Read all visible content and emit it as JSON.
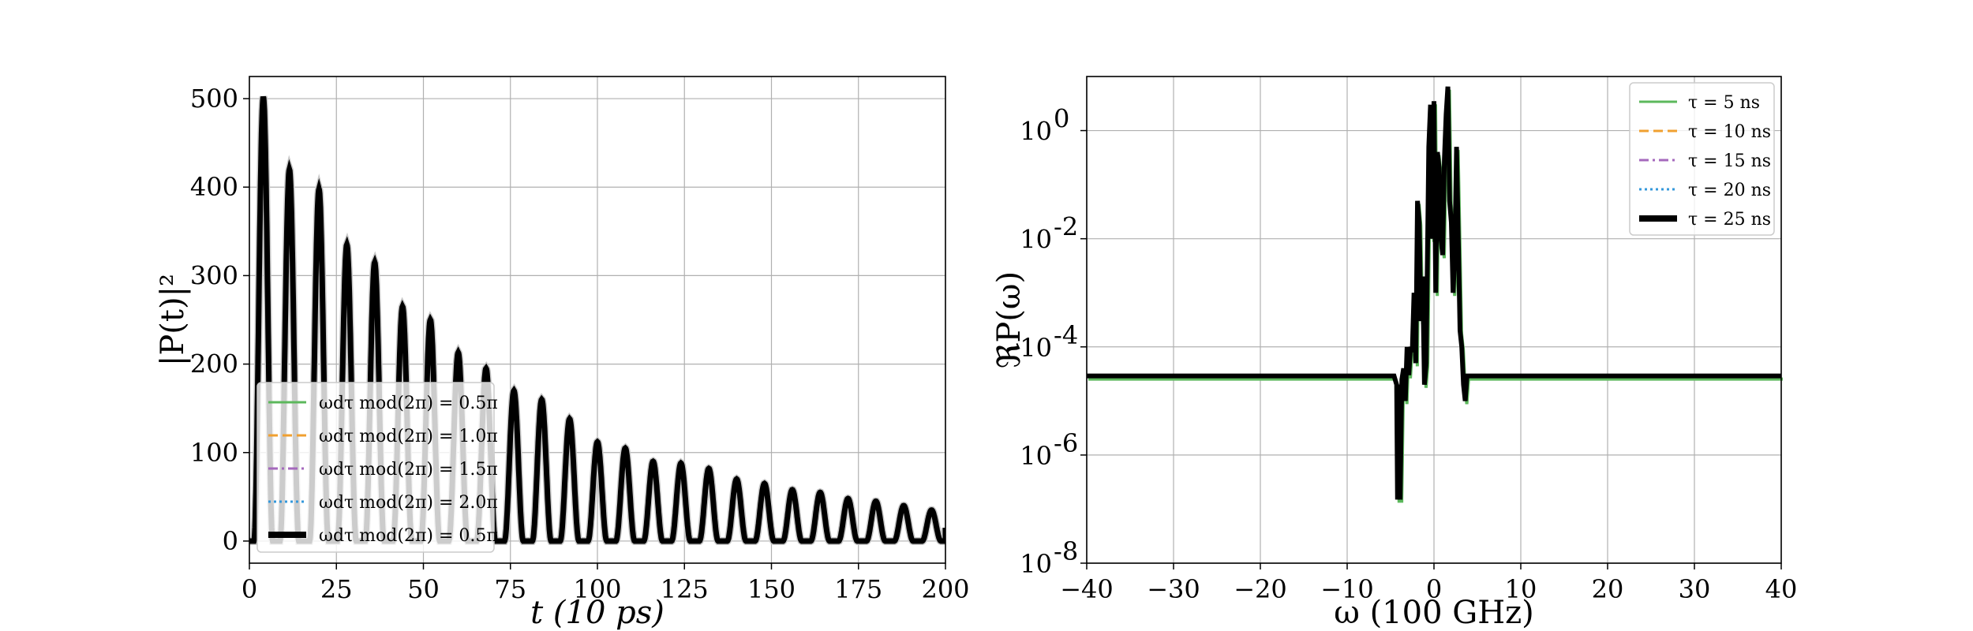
{
  "chart_data": [
    {
      "type": "line",
      "title": "",
      "xlabel": "t (10 ps)",
      "ylabel": "|P(t)|²",
      "xlim": [
        0,
        200
      ],
      "ylim": [
        -25,
        525
      ],
      "xticks": [
        "0",
        "25",
        "50",
        "75",
        "100",
        "125",
        "150",
        "175",
        "200"
      ],
      "yticks": [
        "0",
        "100",
        "200",
        "300",
        "400",
        "500"
      ],
      "grid": true,
      "legend_position": "lower-left",
      "series": [
        {
          "name": "ωdτ mod(2π) = 0.5π",
          "color": "#5cb85c",
          "style": "solid"
        },
        {
          "name": "ωdτ mod(2π) = 1.0π",
          "color": "#f0a030",
          "style": "dashed"
        },
        {
          "name": "ωdτ mod(2π) = 1.5π",
          "color": "#a569bd",
          "style": "dashdot"
        },
        {
          "name": "ωdτ mod(2π) = 2.0π",
          "color": "#3498db",
          "style": "dotted"
        },
        {
          "name": "ωdτ mod(2π) = 0.5π",
          "color": "#000000",
          "style": "solid-thick"
        }
      ],
      "peaks": {
        "x": [
          4,
          11.5,
          20,
          28,
          36,
          44,
          52,
          60,
          68,
          76,
          84,
          92,
          100,
          108,
          116,
          124,
          132,
          140,
          148,
          156,
          164,
          172,
          180,
          188,
          196
        ],
        "y": [
          502,
          420,
          398,
          335,
          315,
          265,
          250,
          213,
          195,
          170,
          160,
          138,
          112,
          105,
          90,
          88,
          82,
          70,
          65,
          58,
          55,
          48,
          45,
          40,
          35
        ]
      }
    },
    {
      "type": "line",
      "title": "",
      "xlabel": "ω (100 GHz)",
      "ylabel": "ℜP(ω)",
      "xlim": [
        -40,
        40
      ],
      "ylim_log10": [
        -8,
        1
      ],
      "yscale": "log",
      "xticks": [
        "−40",
        "−30",
        "−20",
        "−10",
        "0",
        "10",
        "20",
        "30",
        "40"
      ],
      "yticks": [
        "10",
        "10",
        "10",
        "10",
        "10"
      ],
      "ytick_exponents": [
        "-8",
        "-6",
        "-4",
        "-2",
        "0"
      ],
      "grid": true,
      "legend_position": "upper-right",
      "series": [
        {
          "name": "τ = 5 ns",
          "color": "#5cb85c",
          "style": "solid"
        },
        {
          "name": "τ = 10 ns",
          "color": "#f0a030",
          "style": "dashed"
        },
        {
          "name": "τ = 15 ns",
          "color": "#a569bd",
          "style": "dashdot"
        },
        {
          "name": "τ = 20 ns",
          "color": "#3498db",
          "style": "dotted"
        },
        {
          "name": "τ = 25 ns",
          "color": "#000000",
          "style": "solid-thick"
        }
      ],
      "baseline_value": 2.9e-05,
      "spectrum": {
        "x": [
          -40,
          -4.6,
          -4.3,
          -4.2,
          -4.0,
          -3.9,
          -3.7,
          -3.5,
          -3.3,
          -3.1,
          -2.9,
          -2.7,
          -2.5,
          -2.3,
          -2.1,
          -1.9,
          -1.7,
          -1.5,
          -1.3,
          -1.1,
          -0.9,
          -0.6,
          -0.4,
          -0.2,
          0.0,
          0.2,
          0.4,
          0.6,
          0.8,
          1.0,
          1.2,
          1.4,
          1.6,
          1.8,
          2.0,
          2.2,
          2.4,
          2.6,
          2.8,
          3.0,
          3.2,
          3.4,
          3.6,
          3.8,
          4.0,
          40
        ],
        "y": [
          2.9e-05,
          2.9e-05,
          2e-05,
          1.5e-07,
          2e-05,
          1.5e-07,
          2.5e-05,
          4e-05,
          1e-05,
          0.0001,
          3e-05,
          0.0001,
          8e-05,
          0.001,
          5e-05,
          0.05,
          0.02,
          0.0003,
          0.002,
          2e-05,
          5e-05,
          0.5,
          3,
          0.01,
          3.5,
          0.001,
          0.4,
          0.2,
          0.01,
          0.005,
          0.3,
          2,
          6.5,
          0.05,
          0.02,
          0.001,
          0.005,
          0.5,
          0.01,
          0.0002,
          0.0001,
          2e-05,
          1e-05,
          2.9e-05,
          2.9e-05,
          2.9e-05
        ]
      }
    }
  ]
}
